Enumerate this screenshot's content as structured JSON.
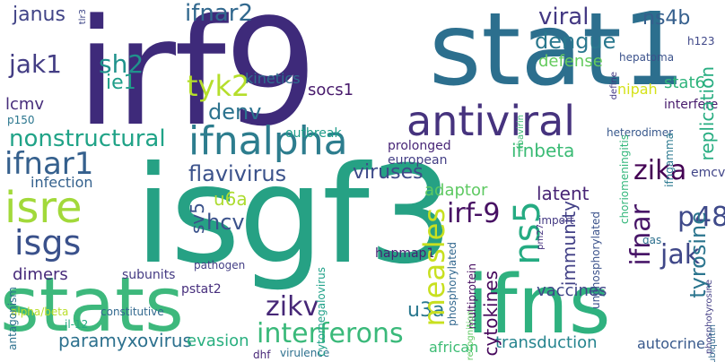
{
  "words": {
    "irf9": "irf9",
    "isgf3": "isgf3",
    "stat1": "stat1",
    "stats": "stats",
    "ifns": "ifns",
    "antiviral": "antiviral",
    "ifnalpha": "ifnalpha",
    "isre": "isre",
    "isgs": "isgs",
    "interferons": "interferons",
    "ifnar1": "ifnar1",
    "nonstructural": "nonstructural",
    "p48": "p48",
    "zika": "zika",
    "flavivirus": "flavivirus",
    "viruses": "viruses",
    "measles": "measles",
    "irf_9": "irf-9",
    "ns5": "ns5",
    "jak1": "jak1",
    "sh2": "sh2",
    "tyk2": "tyk2",
    "ifnar2": "ifnar2",
    "viral": "viral",
    "dengue": "dengue",
    "ns4b": "ns4b",
    "denv": "denv",
    "innate": "innate",
    "hcv": "hcv",
    "u6a": "u6a",
    "zikv": "zikv",
    "paramyxovirus": "paramyxovirus",
    "evasion": "evasion",
    "jak": "jak",
    "ifnar": "ifnar",
    "tyrosine": "tyrosine",
    "vaccines": "vaccines",
    "cytokines": "cytokines",
    "transduction": "transduction",
    "u3a": "u3a",
    "immunity": "immunity",
    "latent": "latent",
    "adaptor": "adaptor",
    "ifnbeta": "ifnbeta",
    "replication": "replication",
    "stat6": "stat6",
    "janus": "janus",
    "host": "host",
    "ie1": "ie1",
    "lcmv": "lcmv",
    "kinetics": "kinetics",
    "socs1": "socs1",
    "defense": "defense",
    "infection": "infection",
    "influenza": "influenza",
    "evade": "evade",
    "dimers": "dimers",
    "sv5": "sv5",
    "subunits": "subunits",
    "pstat2": "pstat2",
    "autocrine": "autocrine",
    "african": "african",
    "outbreak": "outbreak",
    "european": "european",
    "prolonged": "prolonged",
    "hepatoma": "hepatoma",
    "nipah": "nipah",
    "interfere": "interfere",
    "antiproliferative": "antiproliferative",
    "hepatitis": "hepatitis",
    "ns5b": "ns5b",
    "evolved": "evolved",
    "p150": "p150",
    "translocate": "translocate",
    "potent": "potent",
    "stat3": "stat3",
    "cytoplasmic": "cytoplasmic",
    "strain": "strain",
    "adar1": "adar1",
    "ns3_4a": "ns3-4a",
    "docking": "docking",
    "hapmap1": "hapmap1",
    "homodimers": "homodimers",
    "paramyxoviridae": "paramyxoviridae",
    "virulence": "virulence",
    "nucleus": "nucleus",
    "dhf": "dhf",
    "pathogen": "pathogen",
    "constitutive": "constitutive",
    "alpha_beta": "alpha/beta",
    "antagonism": "antagonism",
    "recognized": "recognized",
    "multiprotein": "multiprotein",
    "phosphorylated": "phosphorylated",
    "unphosphorylated": "unphosphorylated",
    "choriomeningitis": "choriomeningitis",
    "emcv": "emcv",
    "ifngamma": "ifngamma",
    "heterodimer": "heterodimer",
    "adaptive": "adaptive",
    "biological": "biological",
    "simian": "simian",
    "antigrowth": "antigrowth",
    "efficacy": "efficacy",
    "stat4": "stat4",
    "statlalpha": "statlalpha",
    "stat1beta": "stat1beta",
    "2ftgh": "2ftgh",
    "unable": "unable",
    "respiratory": "respiratory",
    "psoriasis": "psoriasis",
    "subvert": "subvert",
    "socs3": "socs3",
    "parainfluenza": "parainfluenza",
    "component": "component",
    "actions": "actions",
    "macrophages": "macrophages",
    "explorations": "explorations",
    "il_12": "il-12",
    "mosquito_borne": "mosquito-borne",
    "non_structural": "non-structural",
    "importin": "importin",
    "cytomegalovirus": "cytomegalovirus",
    "surprisingly": "surprisingly",
    "deficient": "deficient",
    "cascades": "cascades",
    "taz1": "taz1",
    "fever": "fever",
    "hcmv": "hcmv",
    "ns2a": "ns2a",
    "import": "import",
    "ifih1": "ifih1",
    "gas": "gas",
    "ns1": "ns1",
    "complexes": "complexes",
    "degradation": "degradation",
    "interactome": "interactome",
    "h123": "h123",
    "tlr": "tlr",
    "src": "src",
    "asia": "asia",
    "unrecognized": "unrecognized",
    "rapid": "rapid",
    "serine": "serine",
    "driven": "driven",
    "ly96": "ly96",
    "recruit": "recruit",
    "dependent": "dependent",
    "socs": "socs",
    "lacking": "lacking",
    "stimulated": "stimulated",
    "respond": "respond",
    "locs": "locs",
    "coiled_coil": "coiled-coil",
    "shared": "shared",
    "phosphotyrosine": "phosphotyrosine",
    "residues": "residues",
    "health": "health",
    "cbp": "cbp",
    "limit": "limit",
    "define": "define",
    "americas": "americas",
    "snps": "snps",
    "consists": "consists",
    "swine": "swine",
    "transcription": "transcription",
    "ancestry": "ancestry",
    "spread": "spread",
    "emerging": "emerging",
    "kinases": "kinases",
    "enabling": "enabling",
    "bound": "bound",
    "molecules": "molecules",
    "proinflammatory": "proinflammatory",
    "immunomodulatory": "immunomodulatory",
    "encephalomyocarditis": "encephalomyocarditis",
    "ubiquitin": "ubiquitin",
    "global": "global",
    "defence": "defence",
    "intracellular": "intracellular",
    "highlight": "highlight",
    "retention": "retention",
    "sufficient": "sufficient",
    "untreatable": "untreatable",
    "anti_proliferative": "anti-proliferative",
    "recognition": "recognition",
    "type": "type",
    "tlr3": "tlr3",
    "interactor": "interactor",
    "ribavirin": "ribavirin",
    "fcgamma": "fcgamma",
    "bka": "bka",
    "signaling": "signaling",
    "icd": "icd",
    "pm27": "pm27",
    "cd8": "cd8",
    "dc": "dc",
    "mmp": "mmp"
  },
  "colors": {
    "irf9": "#3e2a7a",
    "isgf3": "#26a184",
    "stat1": "#2c6f8e",
    "stats": "#3db87c",
    "ifns": "#2fb17f",
    "antiviral": "#46337e",
    "ifnalpha": "#2d7d8e",
    "isre": "#a2d93a",
    "isgs": "#3a518b",
    "interferons": "#3ab97a",
    "ifnar1": "#35608d",
    "nonstructural": "#20a387",
    "p48": "#3f4a8a",
    "zika": "#440154",
    "flavivirus": "#3b528b",
    "viruses": "#3e4a89",
    "measles": "#c8e020",
    "irf_9": "#471063",
    "ns5": "#25ab82",
    "jak1": "#433d84",
    "sh2": "#20928c",
    "tyk2": "#b5de2b",
    "ifnar2": "#31688e",
    "viral": "#443983",
    "dengue": "#2a788e",
    "ns4b": "#355f8d",
    "denv": "#2c728e",
    "innate": "#56c667",
    "hcv": "#3b528b",
    "u6a": "#addc30",
    "zikv": "#462777",
    "paramyxovirus": "#2d718e",
    "evasion": "#29af7f",
    "jak": "#3f4788",
    "ifnar": "#481668",
    "tyrosine": "#2b758e",
    "vaccines": "#404688",
    "cytokines": "#46085c",
    "transduction": "#25848e",
    "u3a": "#2a788e",
    "immunity": "#424086",
    "latent": "#482475",
    "adaptor": "#5ec962",
    "ifnbeta": "#3bbb75",
    "replication": "#27ad81",
    "stat6": "#2fb47c",
    "janus": "#414487",
    "host": "#3e4a89",
    "ie1": "#1f9e89",
    "lcmv": "#472d7b",
    "kinetics": "#2e6e8e",
    "socs1": "#481a6c",
    "defense": "#65cb5e",
    "infection": "#34618d",
    "influenza": "#1fa187",
    "evade": "#4ac16d",
    "dimers": "#472a7a",
    "sv5": "#3b528b",
    "subunits": "#443a83",
    "pstat2": "#472f7d",
    "autocrine": "#38598c",
    "african": "#3dbc74",
    "outbreak": "#1e9c89",
    "european": "#433e85",
    "prolonged": "#482677",
    "hepatoma": "#3b528b",
    "nipah": "#d5e21a",
    "interfere": "#481b6d",
    "antiproliferative": "#482979",
    "hepatitis": "#1f968b",
    "ns5b": "#46327e",
    "evolved": "#453581",
    "p150": "#2a768e",
    "translocate": "#3f4889",
    "potent": "#3e4c8a",
    "stat3": "#2b748e",
    "cytoplasmic": "#3d4e8a",
    "strain": "#3a538b",
    "adar1": "#22a785",
    "ns3_4a": "#414287",
    "docking": "#481467",
    "hapmap1": "#482173",
    "homodimers": "#375b8d",
    "paramyxoviridae": "#433d84",
    "virulence": "#2d708e",
    "nucleus": "#32658e",
    "dhf": "#482878",
    "pathogen": "#433e85",
    "constitutive": "#31688e",
    "alpha_beta": "#b8de29",
    "antagonism": "#2d718e",
    "recognized": "#2e6f8e",
    "multiprotein": "#470e61",
    "phosphorylated": "#31678e",
    "unphosphorylated": "#3b528b",
    "choriomeningitis": "#32b67a",
    "emcv": "#404588",
    "ifngamma": "#2a788e",
    "heterodimer": "#38588c",
    "adaptive": "#1f9f88",
    "biological": "#3a548c",
    "simian": "#44bf70",
    "antigrowth": "#472e7c",
    "efficacy": "#d2e21b",
    "stat4": "#46085c",
    "statlalpha": "#3e4989",
    "stat1beta": "#482374",
    "2ftgh": "#3f4788",
    "unable": "#482878",
    "respiratory": "#86d549",
    "psoriasis": "#2e6d8e",
    "subvert": "#3b528b",
    "socs3": "#453882",
    "parainfluenza": "#472c7a",
    "component": "#3c508b",
    "actions": "#3d4d8a",
    "macrophages": "#3a548c",
    "explorations": "#3e4c8a",
    "il_12": "#25ac82",
    "mosquito_borne": "#482374",
    "non_structural": "#2b748e",
    "importin": "#443b84",
    "cytomegalovirus": "#1fa188",
    "surprisingly": "#440154",
    "deficient": "#3f4889",
    "cascades": "#3b528b",
    "taz1": "#440154",
    "fever": "#3e4a89",
    "hcmv": "#5ec962",
    "ns2a": "#424186",
    "import": "#443983",
    "ifih1": "#39568c",
    "gas": "#2d708e",
    "ns1": "#482173",
    "complexes": "#38588c",
    "degradation": "#3f4788",
    "interactome": "#20928c",
    "h123": "#3f4788",
    "tlr": "#3b528b",
    "src": "#2a788e",
    "asia": "#440154",
    "unrecognized": "#482878",
    "rapid": "#3b528b",
    "serine": "#472d7b",
    "driven": "#433e85",
    "ly96": "#7ad151",
    "recruit": "#414487",
    "dependent": "#2c728e",
    "socs": "#31688e",
    "lacking": "#3e4a89",
    "stimulated": "#35b779",
    "respond": "#2a788e",
    "locs": "#414487",
    "coiled_coil": "#6ccd5a",
    "shared": "#addc30",
    "phosphotyrosine": "#433e85",
    "residues": "#472d7b",
    "health": "#3e4a89",
    "cbp": "#414487",
    "limit": "#482475",
    "define": "#443983",
    "americas": "#46327e",
    "snps": "#472c7a",
    "consists": "#414487",
    "swine": "#21a685",
    "transcription": "#7ad151",
    "ancestry": "#3dbc74",
    "spread": "#1f9e89",
    "emerging": "#c2df23",
    "kinases": "#3b528b",
    "enabling": "#482677",
    "bound": "#440154",
    "molecules": "#3e4a89",
    "proinflammatory": "#472c7a",
    "immunomodulatory": "#453781",
    "encephalomyocarditis": "#46337f",
    "ubiquitin": "#31688e",
    "global": "#440154",
    "defence": "#481f70",
    "intracellular": "#3e4989",
    "highlight": "#443a83",
    "retention": "#a8db34",
    "sufficient": "#dde318",
    "untreatable": "#3b528b",
    "anti_proliferative": "#2c728e",
    "recognition": "#5ec962",
    "type": "#482878",
    "tlr3": "#3f4788",
    "interactor": "#3e4a89",
    "ribavirin": "#3dbc74",
    "fcgamma": "#dde318",
    "bka": "#7ad151",
    "signaling": "#3b528b",
    "icd": "#c2df23",
    "pm27": "#46327e",
    "cd8": "#482173",
    "dc": "#3f4788",
    "mmp": "#7ad151"
  }
}
